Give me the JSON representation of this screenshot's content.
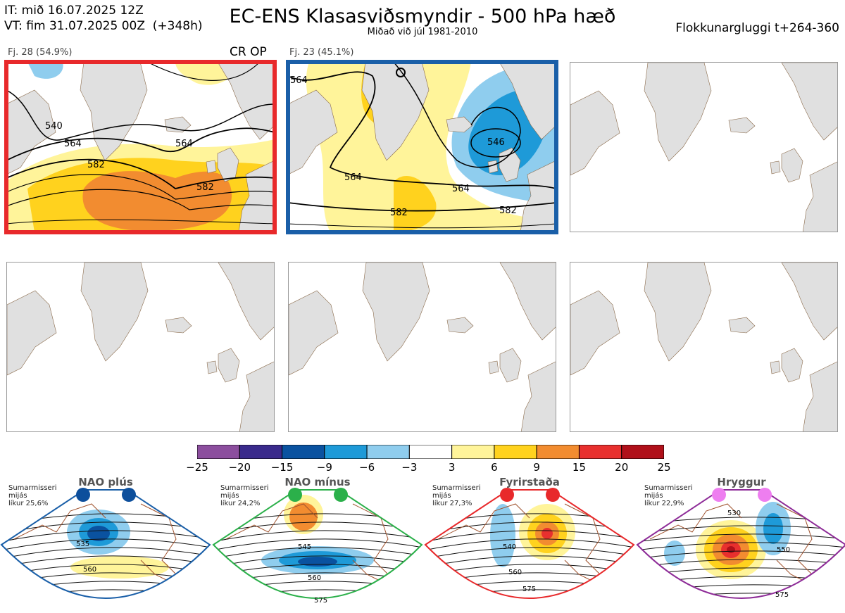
{
  "header": {
    "it_line": "IT: mið 16.07.2025 12Z",
    "vt_line": "VT: fim 31.07.2025 00Z  (+348h)",
    "title": "EC-ENS Klasasviðsmyndir - 500 hPa hæð",
    "subtitle": "Miðað við júl 1981-2010",
    "window": "Flokkunargluggi t+264-360"
  },
  "colors": {
    "cluster1_frame": "#e8292b",
    "cluster2_frame": "#1a5fa8",
    "land": "#e0e0e0",
    "coast": "#7a5a3a"
  },
  "chart_data": [
    {
      "type": "heatmap",
      "name": "cluster-1",
      "label": "Fj. 28 (54.9%)",
      "members": 28,
      "percent": 54.9,
      "tag": "CR OP",
      "contour_labels": [
        "540",
        "564",
        "564",
        "582",
        "582"
      ]
    },
    {
      "type": "heatmap",
      "name": "cluster-2",
      "label": "Fj. 23 (45.1%)",
      "members": 23,
      "percent": 45.1,
      "tag": "",
      "contour_labels": [
        "564",
        "564",
        "564",
        "582",
        "582",
        "546"
      ]
    },
    {
      "type": "colorbar",
      "name": "anomaly-colorbar",
      "bounds": [
        "−25",
        "−20",
        "−15",
        "−9",
        "−6",
        "−3",
        "3",
        "6",
        "9",
        "15",
        "20",
        "25"
      ],
      "colors": [
        "#8c4e9e",
        "#3a2a8c",
        "#0a52a0",
        "#1e9ad8",
        "#8fcdee",
        "#ffffff",
        "#fff49a",
        "#ffd21e",
        "#f28c30",
        "#e8302e",
        "#b0101a"
      ]
    },
    {
      "type": "regime-maps",
      "regimes": [
        {
          "name": "NAO plús",
          "season": "Sumarmisseri",
          "line2": "mijás",
          "prob": "líkur 25,6%",
          "dot_color": "#0d4f9c",
          "border": "#1a5fa8",
          "labels": [
            "535",
            "560"
          ]
        },
        {
          "name": "NAO mínus",
          "season": "Sumarmisseri",
          "line2": "mijás",
          "prob": "líkur 24,2%",
          "dot_color": "#2bb04a",
          "border": "#2bb04a",
          "labels": [
            "545",
            "560",
            "575"
          ]
        },
        {
          "name": "Fyrirstaða",
          "season": "Sumarmisseri",
          "line2": "mijás",
          "prob": "líkur 27,3%",
          "dot_color": "#e8292b",
          "border": "#e8292b",
          "labels": [
            "540",
            "560",
            "575"
          ]
        },
        {
          "name": "Hryggur",
          "season": "Sumarmisseri",
          "line2": "mijás",
          "prob": "líkur 22,9%",
          "dot_color": "#ee7ef0",
          "border": "#8e2c98",
          "labels": [
            "530",
            "550",
            "575"
          ]
        }
      ]
    }
  ]
}
